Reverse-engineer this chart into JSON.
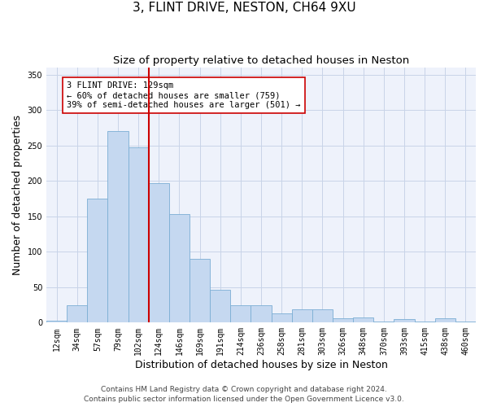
{
  "title_line1": "3, FLINT DRIVE, NESTON, CH64 9XU",
  "title_line2": "Size of property relative to detached houses in Neston",
  "xlabel": "Distribution of detached houses by size in Neston",
  "ylabel": "Number of detached properties",
  "categories": [
    "12sqm",
    "34sqm",
    "57sqm",
    "79sqm",
    "102sqm",
    "124sqm",
    "146sqm",
    "169sqm",
    "191sqm",
    "214sqm",
    "236sqm",
    "258sqm",
    "281sqm",
    "303sqm",
    "326sqm",
    "348sqm",
    "370sqm",
    "393sqm",
    "415sqm",
    "438sqm",
    "460sqm"
  ],
  "values": [
    3,
    25,
    175,
    270,
    248,
    197,
    153,
    90,
    46,
    25,
    25,
    13,
    19,
    19,
    6,
    7,
    1,
    5,
    1,
    6,
    1
  ],
  "bar_color": "#c5d8f0",
  "bar_edge_color": "#7baed4",
  "grid_color": "#c8d4e8",
  "bg_color": "#eef2fb",
  "vline_x_index": 5,
  "vline_color": "#cc0000",
  "annotation_text": "3 FLINT DRIVE: 129sqm\n← 60% of detached houses are smaller (759)\n39% of semi-detached houses are larger (501) →",
  "annotation_box_color": "#ffffff",
  "annotation_box_edge": "#cc0000",
  "ylim": [
    0,
    360
  ],
  "yticks": [
    0,
    50,
    100,
    150,
    200,
    250,
    300,
    350
  ],
  "footer_line1": "Contains HM Land Registry data © Crown copyright and database right 2024.",
  "footer_line2": "Contains public sector information licensed under the Open Government Licence v3.0.",
  "title_fontsize": 11,
  "subtitle_fontsize": 9.5,
  "axis_label_fontsize": 9,
  "tick_fontsize": 7,
  "annotation_fontsize": 7.5,
  "footer_fontsize": 6.5
}
